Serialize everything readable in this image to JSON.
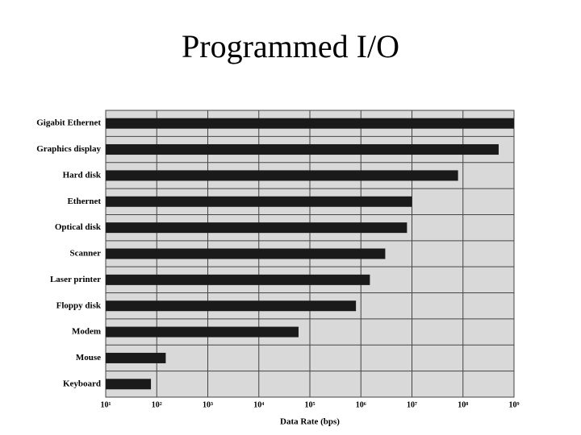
{
  "chart_data": {
    "type": "bar",
    "orientation": "horizontal",
    "title": "Programmed I/O",
    "x_label": "Data Rate (bps)",
    "categories": [
      "Gigabit Ethernet",
      "Graphics display",
      "Hard disk",
      "Ethernet",
      "Optical disk",
      "Scanner",
      "Laser printer",
      "Floppy disk",
      "Modem",
      "Mouse",
      "Keyboard"
    ],
    "values": [
      1000000000,
      500000000,
      80000000,
      10000000,
      8000000,
      3000000,
      1500000,
      800000,
      60000,
      150,
      77
    ],
    "color": "#1a1a1a",
    "background": "#d9d9d9",
    "x_scale": "log",
    "grid": true,
    "xlim": [
      10,
      1000000000
    ],
    "xticks": [
      {
        "value": 10,
        "label": "10¹"
      },
      {
        "value": 100,
        "label": "10²"
      },
      {
        "value": 1000,
        "label": "10³"
      },
      {
        "value": 10000,
        "label": "10⁴"
      },
      {
        "value": 100000,
        "label": "10⁵"
      },
      {
        "value": 1000000,
        "label": "10⁶"
      },
      {
        "value": 10000000,
        "label": "10⁷"
      },
      {
        "value": 100000000,
        "label": "10⁸"
      },
      {
        "value": 1000000000,
        "label": "10⁹"
      }
    ]
  }
}
